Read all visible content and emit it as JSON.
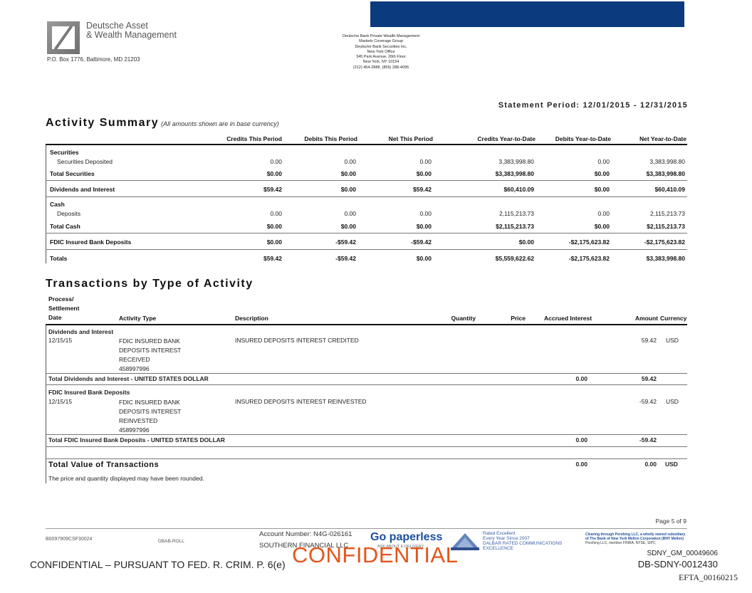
{
  "header": {
    "firm_line1": "Deutsche Asset",
    "firm_line2": "& Wealth Management",
    "po_box": "P.O. Box 1776, Baltimore, MD 21203",
    "bank_address": [
      "Deutsche Bank Private Wealth Management",
      "Markets Coverage Group",
      "Deutsche Bank Securities Inc.",
      "New York Office",
      "345 Park Avenue, 26th Floor",
      "New York, NY 10154",
      "(212) 454-2888, (855) 288-4095"
    ],
    "statement_period": "Statement Period: 12/01/2015 - 12/31/2015"
  },
  "activity_summary": {
    "title": "Activity Summary",
    "subtitle": "(All amounts shown are in base currency)",
    "columns": [
      "Credits This Period",
      "Debits This Period",
      "Net This Period",
      "Credits Year-to-Date",
      "Debits Year-to-Date",
      "Net Year-to-Date"
    ],
    "securities_label": "Securities",
    "securities_deposited": {
      "label": "Securities Deposited",
      "values": [
        "0.00",
        "0.00",
        "0.00",
        "3,383,998.80",
        "0.00",
        "3,383,998.80"
      ]
    },
    "total_securities": {
      "label": "Total Securities",
      "values": [
        "$0.00",
        "$0.00",
        "$0.00",
        "$3,383,998.80",
        "$0.00",
        "$3,383,998.80"
      ]
    },
    "dividends_interest": {
      "label": "Dividends and Interest",
      "values": [
        "$59.42",
        "$0.00",
        "$59.42",
        "$60,410.09",
        "$0.00",
        "$60,410.09"
      ]
    },
    "cash_label": "Cash",
    "deposits": {
      "label": "Deposits",
      "values": [
        "0.00",
        "0.00",
        "0.00",
        "2,115,213.73",
        "0.00",
        "2,115,213.73"
      ]
    },
    "total_cash": {
      "label": "Total Cash",
      "values": [
        "$0.00",
        "$0.00",
        "$0.00",
        "$2,115,213.73",
        "$0.00",
        "$2,115,213.73"
      ]
    },
    "fdic": {
      "label": "FDIC Insured Bank Deposits",
      "values": [
        "$0.00",
        "-$59.42",
        "-$59.42",
        "$0.00",
        "-$2,175,623.82",
        "-$2,175,623.82"
      ]
    },
    "totals": {
      "label": "Totals",
      "values": [
        "$59.42",
        "-$59.42",
        "$0.00",
        "$5,559,622.62",
        "-$2,175,623.82",
        "$3,383,998.80"
      ]
    }
  },
  "transactions": {
    "title": "Transactions by Type of Activity",
    "headers": {
      "date_l1": "Process/",
      "date_l2": "Settlement",
      "date_l3": "Date",
      "activity_type": "Activity Type",
      "description": "Description",
      "quantity": "Quantity",
      "price": "Price",
      "accrued_interest": "Accrued Interest",
      "amount": "Amount",
      "currency": "Currency"
    },
    "group1": {
      "label": "Dividends and Interest",
      "date": "12/15/15",
      "activity": [
        "FDIC INSURED BANK",
        "DEPOSITS INTEREST",
        "RECEIVED",
        "458997996"
      ],
      "description": "INSURED DEPOSITS INTEREST CREDITED",
      "amount": "59.42",
      "currency": "USD",
      "total_label": "Total Dividends and Interest - UNITED STATES DOLLAR",
      "total_accrued": "0.00",
      "total_amount": "59.42"
    },
    "group2": {
      "label": "FDIC Insured Bank Deposits",
      "date": "12/15/15",
      "activity": [
        "FDIC INSURED BANK",
        "DEPOSITS INTEREST",
        "REINVESTED",
        "458997996"
      ],
      "description": "INSURED DEPOSITS INTEREST REINVESTED",
      "amount": "-59.42",
      "currency": "USD",
      "total_label": "Total FDIC Insured Bank Deposits - UNITED STATES DOLLAR",
      "total_accrued": "0.00",
      "total_amount": "-59.42"
    },
    "total_value": {
      "label": "Total Value of Transactions",
      "accrued": "0.00",
      "amount": "0.00",
      "currency": "USD"
    },
    "rounding_note": "The price and quantity displayed may have been rounded."
  },
  "footer": {
    "page": "Page 5 of 9",
    "doc_code": "B0097909CSF30024",
    "rep_code": "DBAB-ROLL",
    "account_number": "Account Number: N4G-026161",
    "account_name": "SOUTHERN FINANCIAL LLC",
    "go_paperless": "Go paperless",
    "go_paperless_sub": "ASK ABOUT E-DELIVERY",
    "dalbar": [
      "Rated Excellent",
      "Every Year Since 2007",
      "DALBAR RATED COMMUNICATIONS",
      "EXCELLENCE"
    ],
    "pershing_bold": [
      "Clearing through Pershing LLC, a wholly owned subsidiary",
      "of The Bank of New York Mellon Corporation (BNY Mellon)"
    ],
    "pershing_plain": "Pershing LLC, member FINRA, NYSE, SIPC",
    "confidential_stamp": "CONFIDENTIAL",
    "confidential_notice": "CONFIDENTIAL – PURSUANT TO FED. R. CRIM. P. 6(e)",
    "id1": "SDNY_GM_00049606",
    "id2": "DB-SDNY-0012430",
    "id3": "EFTA_00160215"
  }
}
